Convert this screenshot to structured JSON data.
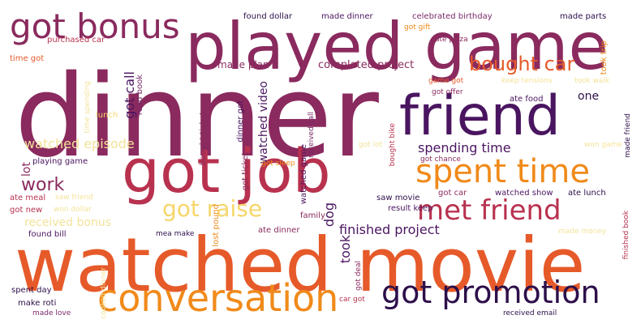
{
  "palette": {
    "background": "#ffffff",
    "maroon": "#8a2a5e",
    "purple": "#4a1560",
    "darkpurple": "#2d0f4a",
    "orange": "#f08a1a",
    "redorange": "#e65a2a",
    "crimson": "#b8324f",
    "yellow": "#f6d66a",
    "paleyellow": "#f3e39a",
    "plum": "#7a2a6a"
  },
  "words": [
    {
      "text": "dinner",
      "color": "#8a2a5e",
      "vertical": false
    },
    {
      "text": "played game",
      "color": "#8a2a5e",
      "vertical": false
    },
    {
      "text": "watched movie",
      "color": "#e65a2a",
      "vertical": false
    },
    {
      "text": "got job",
      "color": "#b8324f",
      "vertical": false
    },
    {
      "text": "friend",
      "color": "#4a1560",
      "vertical": false
    },
    {
      "text": "conversation",
      "color": "#f08a1a",
      "vertical": false
    },
    {
      "text": "got promotion",
      "color": "#2d0f4a",
      "vertical": false
    },
    {
      "text": "spent time",
      "color": "#f08a1a",
      "vertical": false
    },
    {
      "text": "met friend",
      "color": "#b8324f",
      "vertical": false
    },
    {
      "text": "got bonus",
      "color": "#8a2a5e",
      "vertical": false
    },
    {
      "text": "bought car",
      "color": "#e65a2a",
      "vertical": false
    },
    {
      "text": "got raise",
      "color": "#f6d66a",
      "vertical": false
    },
    {
      "text": "finished project",
      "color": "#4a1560",
      "vertical": false
    },
    {
      "text": "spending time",
      "color": "#4a1560",
      "vertical": false
    },
    {
      "text": "watched episode",
      "color": "#f3e39a",
      "vertical": false
    },
    {
      "text": "work",
      "color": "#8a2a5e",
      "vertical": false
    },
    {
      "text": "completed project",
      "color": "#8a2a5e",
      "vertical": false
    },
    {
      "text": "made plan",
      "color": "#8a2a5e",
      "vertical": false
    },
    {
      "text": "watched video",
      "color": "#4a1560",
      "vertical": true
    },
    {
      "text": "got call",
      "color": "#4a1560",
      "vertical": true
    },
    {
      "text": "one",
      "color": "#2d0f4a",
      "vertical": false
    },
    {
      "text": "took",
      "color": "#4a1560",
      "vertical": true
    },
    {
      "text": "dog",
      "color": "#4a1560",
      "vertical": true
    },
    {
      "text": "lot",
      "color": "#8a2a5e",
      "vertical": true
    },
    {
      "text": "received bonus",
      "color": "#f3e39a",
      "vertical": false
    },
    {
      "text": "found dollar",
      "color": "#2d0f4a",
      "vertical": false
    },
    {
      "text": "made dinner",
      "color": "#4a1560",
      "vertical": false
    },
    {
      "text": "celebrated birthday",
      "color": "#7a2a6a",
      "vertical": false
    },
    {
      "text": "made parts",
      "color": "#2d0f4a",
      "vertical": false
    },
    {
      "text": "purchased car",
      "color": "#b8324f",
      "vertical": false
    },
    {
      "text": "time got",
      "color": "#e65a2a",
      "vertical": false
    },
    {
      "text": "took trip",
      "color": "#f08a1a",
      "vertical": true
    },
    {
      "text": "got gift",
      "color": "#f08a1a",
      "vertical": false
    },
    {
      "text": "ate pizza",
      "color": "#8a2a5e",
      "vertical": false
    },
    {
      "text": "read book",
      "color": "#7a2a6a",
      "vertical": true
    },
    {
      "text": "time spending",
      "color": "#f3e39a",
      "vertical": true
    },
    {
      "text": "game got",
      "color": "#e65a2a",
      "vertical": false
    },
    {
      "text": "keep tensions",
      "color": "#f3e39a",
      "vertical": false
    },
    {
      "text": "took walk",
      "color": "#f3e39a",
      "vertical": false
    },
    {
      "text": "got offer",
      "color": "#8a2a5e",
      "vertical": false
    },
    {
      "text": "ate food",
      "color": "#4a1560",
      "vertical": false
    },
    {
      "text": "lunch",
      "color": "#f6d66a",
      "vertical": false
    },
    {
      "text": "bought ticket",
      "color": "#8a2a5e",
      "vertical": true
    },
    {
      "text": "dinner got",
      "color": "#4a1560",
      "vertical": true
    },
    {
      "text": "received call",
      "color": "#7a2a6a",
      "vertical": true
    },
    {
      "text": "bought bike",
      "color": "#b8324f",
      "vertical": true
    },
    {
      "text": "got lot",
      "color": "#f3e39a",
      "vertical": false
    },
    {
      "text": "got chance",
      "color": "#8a2a5e",
      "vertical": false
    },
    {
      "text": "made friend",
      "color": "#2d0f4a",
      "vertical": true
    },
    {
      "text": "won game",
      "color": "#f3e39a",
      "vertical": false
    },
    {
      "text": "playing game",
      "color": "#4a1560",
      "vertical": false
    },
    {
      "text": "got ticket",
      "color": "#8a2a5e",
      "vertical": true
    },
    {
      "text": "got sleep",
      "color": "#f08a1a",
      "vertical": false
    },
    {
      "text": "watched game",
      "color": "#4a1560",
      "vertical": true
    },
    {
      "text": "ate meal",
      "color": "#b8324f",
      "vertical": false
    },
    {
      "text": "saw friend",
      "color": "#f3e39a",
      "vertical": false
    },
    {
      "text": "got new",
      "color": "#b8324f",
      "vertical": false
    },
    {
      "text": "won dollar",
      "color": "#f3e39a",
      "vertical": false
    },
    {
      "text": "saw movie",
      "color": "#2d0f4a",
      "vertical": false
    },
    {
      "text": "got car",
      "color": "#8a2a5e",
      "vertical": false
    },
    {
      "text": "watched show",
      "color": "#4a1560",
      "vertical": false
    },
    {
      "text": "ate lunch",
      "color": "#2d0f4a",
      "vertical": false
    },
    {
      "text": "lost pound",
      "color": "#f08a1a",
      "vertical": true
    },
    {
      "text": "result keep",
      "color": "#4a1560",
      "vertical": false
    },
    {
      "text": "family",
      "color": "#8a2a5e",
      "vertical": false
    },
    {
      "text": "found bill",
      "color": "#4a1560",
      "vertical": false
    },
    {
      "text": "mea make",
      "color": "#2d0f4a",
      "vertical": false
    },
    {
      "text": "ate dinner",
      "color": "#8a2a5e",
      "vertical": false
    },
    {
      "text": "got deal",
      "color": "#8a2a5e",
      "vertical": true
    },
    {
      "text": "made money",
      "color": "#f3e39a",
      "vertical": false
    },
    {
      "text": "finished book",
      "color": "#b8324f",
      "vertical": true
    },
    {
      "text": "spent day",
      "color": "#2d0f4a",
      "vertical": false
    },
    {
      "text": "make roti",
      "color": "#2d0f4a",
      "vertical": false
    },
    {
      "text": "made love",
      "color": "#7a2a6a",
      "vertical": false
    },
    {
      "text": "cooked dinner",
      "color": "#f3e39a",
      "vertical": true
    },
    {
      "text": "car got",
      "color": "#b8324f",
      "vertical": false
    },
    {
      "text": "received email",
      "color": "#2d0f4a",
      "vertical": false
    }
  ]
}
